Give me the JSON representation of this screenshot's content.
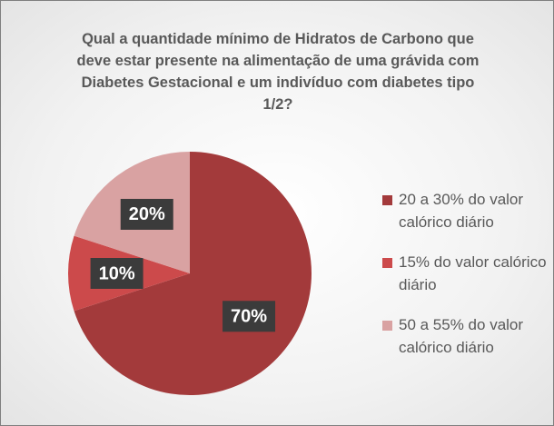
{
  "chart_data": {
    "type": "pie",
    "title": "Qual a quantidade mínimo de Hidratos de Carbono que deve estar presente na alimentação de uma grávida com Diabetes Gestacional e um indivíduo com diabetes tipo 1/2?",
    "categories": [
      "20 a 30% do valor calórico diário",
      "15% do valor calórico diário",
      "50 a 55% do valor calórico diário"
    ],
    "values": [
      70,
      10,
      20
    ],
    "value_labels": [
      "70%",
      "10%",
      "20%"
    ],
    "colors": [
      "#a33a3b",
      "#cc4a4b",
      "#d9a2a2"
    ],
    "legend": "right"
  }
}
